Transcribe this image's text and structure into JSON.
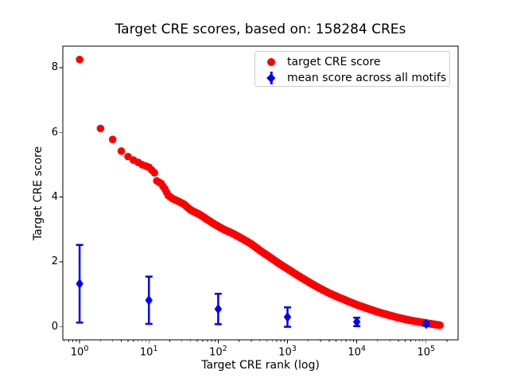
{
  "chart_data": {
    "type": "scatter",
    "title": "Target CRE scores, based on: 158284 CREs",
    "xlabel": "Target CRE rank (log)",
    "ylabel": "Target CRE score",
    "xscale": "log",
    "xlim_log10": [
      -0.242,
      5.462
    ],
    "ylim": [
      -0.413,
      8.663
    ],
    "x_tick_exponents": [
      0,
      1,
      2,
      3,
      4,
      5
    ],
    "y_ticks": [
      0,
      2,
      4,
      6,
      8
    ],
    "grid": false,
    "legend": {
      "position": "upper right",
      "entries": [
        {
          "label": "target CRE score",
          "marker": "circle",
          "color": "#ff0000"
        },
        {
          "label": "mean score across all motifs",
          "marker": "diamond",
          "color": "#0000ff"
        }
      ]
    },
    "series": [
      {
        "name": "target CRE score",
        "kind": "scatter-curve",
        "marker": "circle",
        "color": "#ff0000",
        "n_points_total": 158284,
        "note": "dense rank-ordered score curve; anchor_points sampled [rank, score]",
        "anchor_points": [
          [
            1,
            8.25
          ],
          [
            2,
            6.12
          ],
          [
            3,
            5.78
          ],
          [
            4,
            5.42
          ],
          [
            5,
            5.25
          ],
          [
            6,
            5.14
          ],
          [
            7,
            5.07
          ],
          [
            8,
            5.0
          ],
          [
            10,
            4.92
          ],
          [
            12,
            4.75
          ],
          [
            13,
            4.5
          ],
          [
            15,
            4.42
          ],
          [
            17,
            4.25
          ],
          [
            19,
            4.05
          ],
          [
            22,
            3.95
          ],
          [
            26,
            3.88
          ],
          [
            32,
            3.78
          ],
          [
            40,
            3.6
          ],
          [
            55,
            3.45
          ],
          [
            70,
            3.3
          ],
          [
            90,
            3.15
          ],
          [
            120,
            3.0
          ],
          [
            160,
            2.88
          ],
          [
            220,
            2.72
          ],
          [
            300,
            2.55
          ],
          [
            400,
            2.35
          ],
          [
            550,
            2.15
          ],
          [
            750,
            1.95
          ],
          [
            1000,
            1.78
          ],
          [
            1400,
            1.58
          ],
          [
            2000,
            1.38
          ],
          [
            2800,
            1.2
          ],
          [
            4000,
            1.03
          ],
          [
            5500,
            0.9
          ],
          [
            7500,
            0.78
          ],
          [
            10000,
            0.67
          ],
          [
            14000,
            0.56
          ],
          [
            20000,
            0.45
          ],
          [
            28000,
            0.36
          ],
          [
            40000,
            0.27
          ],
          [
            56000,
            0.2
          ],
          [
            80000,
            0.14
          ],
          [
            110000,
            0.09
          ],
          [
            158284,
            0.04
          ]
        ]
      },
      {
        "name": "mean score across all motifs",
        "kind": "errorbar",
        "marker": "diamond",
        "color": "#0000ff",
        "x": [
          1,
          10,
          100,
          1000,
          10000,
          100000
        ],
        "y": [
          1.32,
          0.81,
          0.54,
          0.29,
          0.14,
          0.08
        ],
        "yerr": [
          1.2,
          0.73,
          0.47,
          0.3,
          0.13,
          0.06
        ]
      }
    ]
  },
  "colors": {
    "red": "#ff0000",
    "blue": "#0000ff",
    "frame": "#000000",
    "legend_border": "#cccccc",
    "background": "#ffffff"
  }
}
